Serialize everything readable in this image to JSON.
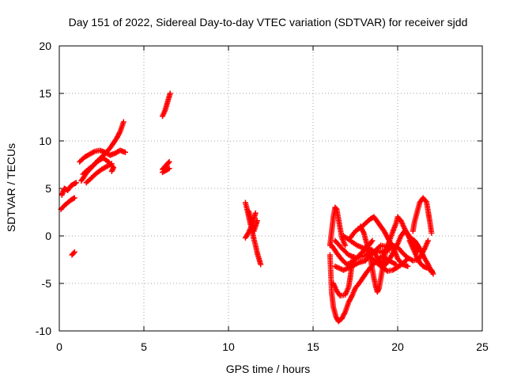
{
  "colors": {
    "series": "#ff0000",
    "grid": "#a0a0a0",
    "axis": "#000000",
    "background": "#ffffff"
  },
  "chart_data": {
    "type": "scatter",
    "title": "Day 151 of 2022, Sidereal Day-to-day VTEC variation (SDTVAR) for receiver sjdd",
    "xlabel": "GPS time / hours",
    "ylabel": "SDTVAR / TECUs",
    "xlim": [
      0,
      25
    ],
    "ylim": [
      -10,
      20
    ],
    "xticks": [
      0,
      5,
      10,
      15,
      20,
      25
    ],
    "yticks": [
      -10,
      -5,
      0,
      5,
      10,
      15,
      20
    ],
    "xtick_labels": [
      "0",
      "5",
      "10",
      "15",
      "20",
      "25"
    ],
    "ytick_labels": [
      "-10",
      "-5",
      "0",
      "5",
      "10",
      "15",
      "20"
    ],
    "grid": true,
    "marker": "+",
    "series": [
      {
        "name": "sjdd",
        "tracks": [
          [
            [
              0.15,
              4.3
            ],
            [
              0.3,
              5.0
            ],
            [
              0.5,
              4.8
            ],
            [
              0.7,
              5.3
            ],
            [
              0.9,
              5.5
            ],
            [
              1.0,
              5.6
            ]
          ],
          [
            [
              0.1,
              2.8
            ],
            [
              0.3,
              3.2
            ],
            [
              0.5,
              3.5
            ],
            [
              0.7,
              3.8
            ],
            [
              0.9,
              4.0
            ]
          ],
          [
            [
              0.75,
              -2.0
            ],
            [
              0.9,
              -1.7
            ]
          ],
          [
            [
              1.3,
              5.8
            ],
            [
              1.6,
              6.6
            ],
            [
              1.9,
              7.2
            ],
            [
              2.2,
              7.8
            ],
            [
              2.5,
              8.3
            ],
            [
              2.8,
              8.8
            ],
            [
              3.1,
              9.5
            ],
            [
              3.4,
              10.3
            ],
            [
              3.6,
              11.0
            ],
            [
              3.8,
              12.0
            ]
          ],
          [
            [
              1.2,
              7.8
            ],
            [
              1.5,
              8.3
            ],
            [
              1.8,
              8.6
            ],
            [
              2.1,
              8.9
            ],
            [
              2.4,
              9.0
            ],
            [
              2.7,
              8.8
            ],
            [
              3.0,
              8.5
            ],
            [
              3.3,
              8.7
            ],
            [
              3.6,
              9.0
            ],
            [
              3.9,
              8.8
            ]
          ],
          [
            [
              1.4,
              6.5
            ],
            [
              1.7,
              7.0
            ],
            [
              2.0,
              7.4
            ],
            [
              2.3,
              7.9
            ],
            [
              2.6,
              8.2
            ],
            [
              2.9,
              7.8
            ],
            [
              3.2,
              7.2
            ],
            [
              3.1,
              6.8
            ]
          ],
          [
            [
              1.6,
              5.6
            ],
            [
              1.9,
              6.1
            ],
            [
              2.2,
              6.6
            ],
            [
              2.5,
              7.0
            ],
            [
              2.8,
              7.3
            ],
            [
              3.1,
              7.6
            ]
          ],
          [
            [
              6.1,
              12.6
            ],
            [
              6.25,
              13.2
            ],
            [
              6.35,
              13.8
            ],
            [
              6.45,
              14.4
            ],
            [
              6.55,
              15.0
            ]
          ],
          [
            [
              6.1,
              7.0
            ],
            [
              6.25,
              7.3
            ],
            [
              6.4,
              7.6
            ],
            [
              6.5,
              7.8
            ]
          ],
          [
            [
              6.1,
              6.7
            ],
            [
              6.3,
              6.9
            ],
            [
              6.5,
              7.1
            ]
          ],
          [
            [
              11.0,
              3.5
            ],
            [
              11.1,
              2.8
            ],
            [
              11.2,
              2.0
            ],
            [
              11.3,
              1.2
            ],
            [
              11.4,
              0.5
            ],
            [
              11.5,
              -0.3
            ],
            [
              11.6,
              -1.0
            ],
            [
              11.7,
              -1.8
            ],
            [
              11.8,
              -2.4
            ],
            [
              11.9,
              -3.0
            ]
          ],
          [
            [
              11.2,
              2.6
            ],
            [
              11.3,
              1.9
            ],
            [
              11.4,
              1.1
            ],
            [
              11.5,
              0.5
            ],
            [
              11.6,
              1.0
            ],
            [
              11.7,
              1.6
            ]
          ],
          [
            [
              11.0,
              -0.2
            ],
            [
              11.2,
              0.4
            ],
            [
              11.35,
              1.0
            ],
            [
              11.5,
              1.8
            ],
            [
              11.6,
              2.4
            ]
          ],
          [
            [
              16.0,
              -1.0
            ],
            [
              16.1,
              0.5
            ],
            [
              16.2,
              2.0
            ],
            [
              16.3,
              3.0
            ],
            [
              16.4,
              2.8
            ],
            [
              16.5,
              1.8
            ],
            [
              16.6,
              0.8
            ],
            [
              16.7,
              -0.2
            ],
            [
              16.9,
              -1.0
            ]
          ],
          [
            [
              16.0,
              -2.0
            ],
            [
              16.05,
              -4.0
            ],
            [
              16.1,
              -6.0
            ],
            [
              16.2,
              -7.5
            ],
            [
              16.35,
              -8.5
            ],
            [
              16.5,
              -9.0
            ],
            [
              16.7,
              -8.7
            ],
            [
              16.9,
              -8.0
            ],
            [
              17.1,
              -7.0
            ],
            [
              17.3,
              -6.3
            ],
            [
              17.5,
              -5.5
            ],
            [
              17.8,
              -4.8
            ],
            [
              18.1,
              -4.0
            ],
            [
              18.4,
              -3.3
            ],
            [
              18.7,
              -2.7
            ],
            [
              19.0,
              -2.2
            ],
            [
              19.3,
              -2.4
            ],
            [
              19.6,
              -2.7
            ],
            [
              19.9,
              -3.0
            ]
          ],
          [
            [
              16.2,
              -5.0
            ],
            [
              16.4,
              -5.8
            ],
            [
              16.6,
              -6.3
            ],
            [
              16.9,
              -6.2
            ],
            [
              17.1,
              -5.4
            ],
            [
              17.2,
              -4.3
            ],
            [
              17.3,
              -3.0
            ],
            [
              17.4,
              -2.2
            ]
          ],
          [
            [
              16.1,
              -1.0
            ],
            [
              16.4,
              -1.8
            ],
            [
              16.7,
              -2.5
            ],
            [
              17.0,
              -3.0
            ],
            [
              17.3,
              -2.8
            ],
            [
              17.6,
              -2.3
            ],
            [
              17.9,
              -1.7
            ],
            [
              18.2,
              -1.3
            ],
            [
              18.5,
              -1.5
            ],
            [
              18.8,
              -2.3
            ],
            [
              19.1,
              -3.0
            ]
          ],
          [
            [
              16.3,
              -3.2
            ],
            [
              16.8,
              -3.6
            ],
            [
              17.3,
              -3.2
            ],
            [
              17.7,
              -2.8
            ],
            [
              18.1,
              -2.6
            ],
            [
              18.4,
              -2.0
            ],
            [
              18.7,
              -1.5
            ],
            [
              19.0,
              -1.0
            ],
            [
              19.3,
              -1.1
            ]
          ],
          [
            [
              16.3,
              -0.5
            ],
            [
              16.7,
              -1.3
            ],
            [
              17.1,
              -2.0
            ],
            [
              17.5,
              -2.3
            ],
            [
              18.0,
              -2.1
            ],
            [
              18.5,
              -1.8
            ],
            [
              19.0,
              -1.6
            ],
            [
              19.5,
              -1.5
            ]
          ],
          [
            [
              16.8,
              0.0
            ],
            [
              17.2,
              -0.5
            ],
            [
              17.6,
              -1.0
            ],
            [
              18.0,
              -1.3
            ],
            [
              18.3,
              -1.0
            ],
            [
              18.5,
              -0.5
            ]
          ],
          [
            [
              17.2,
              -0.2
            ],
            [
              17.5,
              0.5
            ],
            [
              17.9,
              1.0
            ],
            [
              18.2,
              1.5
            ],
            [
              18.4,
              1.8
            ],
            [
              18.6,
              2.0
            ],
            [
              18.8,
              1.5
            ],
            [
              19.0,
              1.0
            ],
            [
              19.2,
              0.5
            ],
            [
              19.5,
              -0.5
            ],
            [
              19.8,
              -1.5
            ],
            [
              20.0,
              -2.4
            ],
            [
              20.3,
              -3.0
            ],
            [
              20.6,
              -3.2
            ]
          ],
          [
            [
              17.8,
              1.0
            ],
            [
              18.0,
              0.3
            ],
            [
              18.2,
              -1.0
            ],
            [
              18.4,
              -2.5
            ],
            [
              18.5,
              -3.5
            ],
            [
              18.6,
              -4.5
            ],
            [
              18.7,
              -5.3
            ],
            [
              18.8,
              -5.9
            ],
            [
              18.9,
              -5.5
            ],
            [
              19.0,
              -4.5
            ],
            [
              19.1,
              -3.5
            ],
            [
              19.2,
              -2.5
            ],
            [
              19.3,
              -1.5
            ],
            [
              19.5,
              -0.6
            ],
            [
              19.7,
              0.4
            ],
            [
              19.9,
              1.3
            ],
            [
              20.0,
              2.0
            ],
            [
              20.2,
              1.6
            ],
            [
              20.4,
              0.8
            ],
            [
              20.6,
              0.1
            ],
            [
              20.8,
              -0.6
            ],
            [
              21.0,
              -1.2
            ],
            [
              21.2,
              -1.6
            ]
          ],
          [
            [
              19.0,
              -2.8
            ],
            [
              19.3,
              -3.0
            ],
            [
              19.6,
              -2.2
            ],
            [
              19.8,
              -1.5
            ],
            [
              20.0,
              -0.8
            ],
            [
              20.2,
              0.0
            ],
            [
              20.4,
              0.5
            ],
            [
              20.6,
              0.2
            ],
            [
              20.8,
              -0.3
            ],
            [
              21.0,
              -0.5
            ],
            [
              21.2,
              -1.0
            ],
            [
              21.4,
              -1.7
            ],
            [
              21.6,
              -2.4
            ],
            [
              21.8,
              -3.0
            ],
            [
              22.0,
              -3.8
            ]
          ],
          [
            [
              19.1,
              -1.8
            ],
            [
              19.4,
              -1.5
            ],
            [
              19.7,
              -1.0
            ],
            [
              20.0,
              -1.2
            ],
            [
              20.3,
              -1.8
            ],
            [
              20.6,
              -2.3
            ],
            [
              20.9,
              -2.6
            ],
            [
              21.2,
              -2.5
            ],
            [
              21.4,
              -2.0
            ],
            [
              21.6,
              -1.3
            ],
            [
              21.8,
              -0.5
            ]
          ],
          [
            [
              20.9,
              0.5
            ],
            [
              21.0,
              1.5
            ],
            [
              21.15,
              2.5
            ],
            [
              21.3,
              3.5
            ],
            [
              21.5,
              4.0
            ],
            [
              21.7,
              3.6
            ],
            [
              21.8,
              2.6
            ],
            [
              21.9,
              1.5
            ],
            [
              22.0,
              0.3
            ]
          ],
          [
            [
              20.7,
              -0.5
            ],
            [
              20.9,
              -1.3
            ],
            [
              21.1,
              -2.1
            ],
            [
              21.3,
              -2.8
            ],
            [
              21.5,
              -3.2
            ],
            [
              21.8,
              -3.4
            ],
            [
              22.0,
              -3.6
            ],
            [
              22.1,
              -4.0
            ]
          ],
          [
            [
              18.2,
              -1.8
            ],
            [
              18.5,
              -2.4
            ],
            [
              18.8,
              -2.9
            ],
            [
              19.1,
              -3.3
            ],
            [
              19.4,
              -3.7
            ],
            [
              19.7,
              -3.6
            ],
            [
              20.0,
              -3.3
            ],
            [
              20.3,
              -2.9
            ],
            [
              20.6,
              -2.4
            ]
          ]
        ]
      }
    ]
  }
}
